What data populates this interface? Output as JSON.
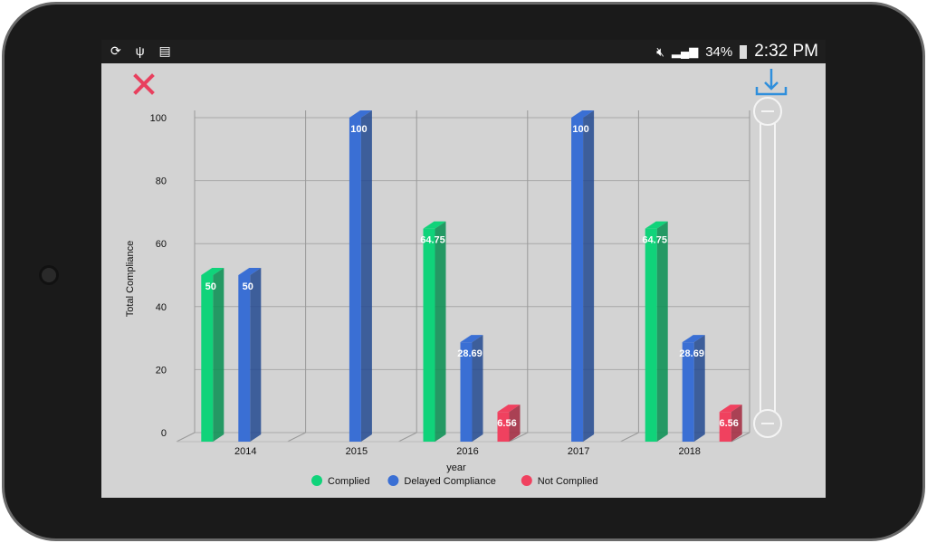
{
  "status_bar": {
    "left_icons": [
      "sync-icon",
      "usb-icon",
      "sim-off-icon"
    ],
    "battery": "34%",
    "time": "2:32 PM",
    "right_icons": [
      "mute-icon",
      "wifi-icon",
      "signal-icon",
      "battery-icon"
    ]
  },
  "toolbar": {
    "close_icon": "close-icon",
    "download_icon": "download-icon"
  },
  "chart_data": {
    "type": "bar",
    "title": "",
    "xlabel": "year",
    "ylabel": "Total Compliance",
    "ylim": [
      0,
      100
    ],
    "yticks": [
      "0",
      "20",
      "40",
      "60",
      "80",
      "100"
    ],
    "categories": [
      "2014",
      "2015",
      "2016",
      "2017",
      "2018"
    ],
    "series": [
      {
        "name": "Complied",
        "color": "#10d37a",
        "values": [
          50,
          0,
          64.75,
          0,
          64.75
        ],
        "labels": [
          "50",
          "",
          "64.75",
          "",
          "64.75"
        ]
      },
      {
        "name": "Delayed Compliance",
        "color": "#3a6fd4",
        "values": [
          50,
          100,
          28.69,
          100,
          28.69
        ],
        "labels": [
          "50",
          "100",
          "28.69",
          "100",
          "28.69"
        ]
      },
      {
        "name": "Not Complied",
        "color": "#f0415f",
        "values": [
          0,
          0,
          6.56,
          0,
          6.56
        ],
        "labels": [
          "",
          "",
          "6.56",
          "",
          "6.56"
        ]
      }
    ],
    "legend": "bottom-center",
    "grid": true
  }
}
